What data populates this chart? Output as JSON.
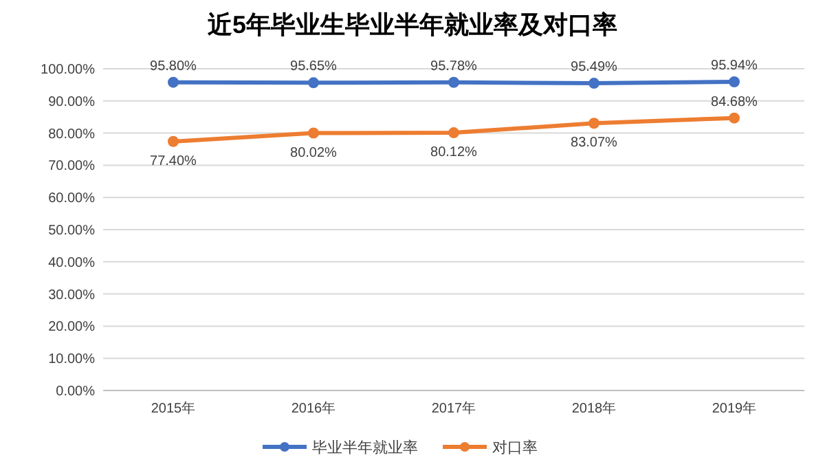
{
  "chart_data": {
    "type": "line",
    "title": "近5年毕业生毕业半年就业率及对口率",
    "categories": [
      "2015年",
      "2016年",
      "2017年",
      "2018年",
      "2019年"
    ],
    "series": [
      {
        "name": "毕业半年就业率",
        "color": "#4472c4",
        "values": [
          95.8,
          95.65,
          95.78,
          95.49,
          95.94
        ],
        "value_labels": [
          "95.80%",
          "95.65%",
          "95.78%",
          "95.49%",
          "95.94%"
        ]
      },
      {
        "name": "对口率",
        "color": "#ed7d31",
        "values": [
          77.4,
          80.02,
          80.12,
          83.07,
          84.68
        ],
        "value_labels": [
          "77.40%",
          "80.02%",
          "80.12%",
          "83.07%",
          "84.68%"
        ]
      }
    ],
    "ylim": [
      0,
      100
    ],
    "yticks": [
      {
        "value": 0,
        "label": "0.00%"
      },
      {
        "value": 10,
        "label": "10.00%"
      },
      {
        "value": 20,
        "label": "20.00%"
      },
      {
        "value": 30,
        "label": "30.00%"
      },
      {
        "value": 40,
        "label": "40.00%"
      },
      {
        "value": 50,
        "label": "50.00%"
      },
      {
        "value": 60,
        "label": "60.00%"
      },
      {
        "value": 70,
        "label": "70.00%"
      },
      {
        "value": 80,
        "label": "80.00%"
      },
      {
        "value": 90,
        "label": "90.00%"
      },
      {
        "value": 100,
        "label": "100.00%"
      }
    ],
    "grid": "y",
    "legend": "bottom",
    "marker": "circle",
    "line_style": "solid"
  }
}
